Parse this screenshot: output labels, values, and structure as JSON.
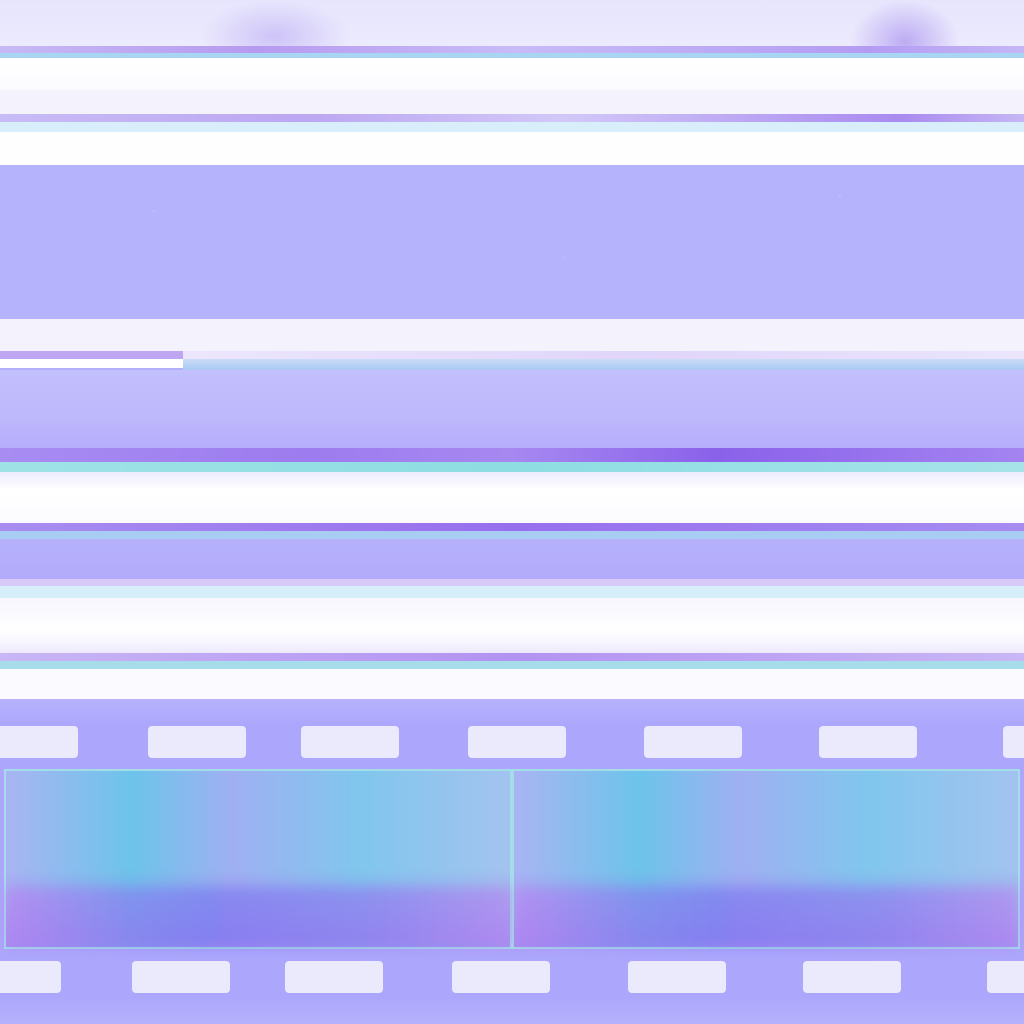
{
  "colors": {
    "lavender": "#b6b3fd",
    "white": "#ffffff",
    "purple_line": "#9d7cef",
    "cyan_line": "#a9cdf2",
    "teal_line": "#8ddde2",
    "film_base": "#aca7fc",
    "sprocket_hole": "#ebeafd",
    "frame_blue": "#6cc4ea",
    "frame_border": "#a3ddea"
  },
  "icons": [
    "film-strip-texture"
  ]
}
